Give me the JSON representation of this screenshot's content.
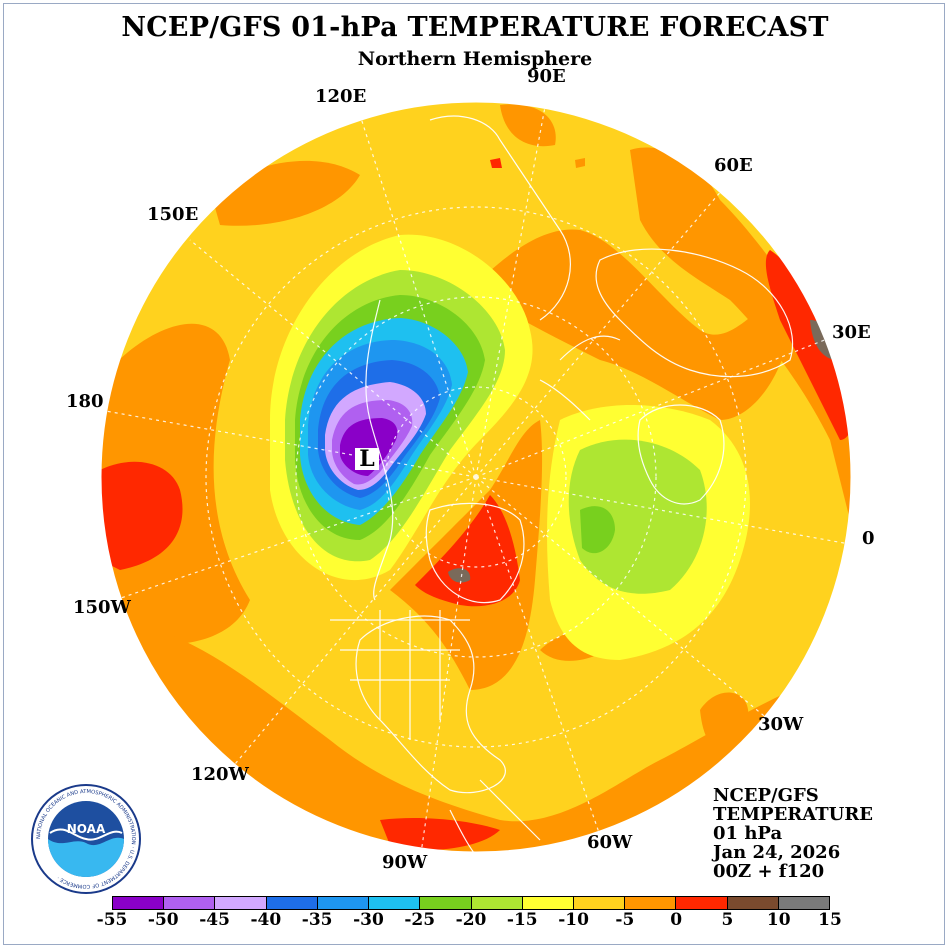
{
  "header": {
    "title": "NCEP/GFS 01-hPa TEMPERATURE FORECAST",
    "subtitle": "Northern Hemisphere"
  },
  "map": {
    "longitude_labels": [
      {
        "id": "lon-90e",
        "text": "90E"
      },
      {
        "id": "lon-120e",
        "text": "120E"
      },
      {
        "id": "lon-60e",
        "text": "60E"
      },
      {
        "id": "lon-150e",
        "text": "150E"
      },
      {
        "id": "lon-30e",
        "text": "30E"
      },
      {
        "id": "lon-180",
        "text": "180"
      },
      {
        "id": "lon-0",
        "text": "0"
      },
      {
        "id": "lon-150w",
        "text": "150W"
      },
      {
        "id": "lon-30w",
        "text": "30W"
      },
      {
        "id": "lon-120w",
        "text": "120W"
      },
      {
        "id": "lon-60w",
        "text": "60W"
      },
      {
        "id": "lon-90w",
        "text": "90W"
      }
    ],
    "low_marker": "L"
  },
  "info_block": {
    "model": "NCEP/GFS",
    "variable": "TEMPERATURE",
    "level": "01 hPa",
    "date": "Jan 24, 2026",
    "run": "00Z + f120"
  },
  "colorbar": {
    "colors": [
      "#8a00c8",
      "#b060f0",
      "#d2a8ff",
      "#1e6ee8",
      "#1e96f0",
      "#1ec0f0",
      "#78d01e",
      "#aee632",
      "#ffff32",
      "#ffd21e",
      "#ff9600",
      "#ff2800",
      "#7a4a2e",
      "#7a7a7a"
    ],
    "labels": [
      "-55",
      "-50",
      "-45",
      "-40",
      "-35",
      "-30",
      "-25",
      "-20",
      "-15",
      "-10",
      "-5",
      "0",
      "5",
      "10",
      "15"
    ]
  },
  "logo": {
    "text": "NOAA",
    "ring_text": "NATIONAL OCEANIC AND ATMOSPHERIC ADMINISTRATION · U.S. DEPARTMENT OF COMMERCE ·"
  }
}
